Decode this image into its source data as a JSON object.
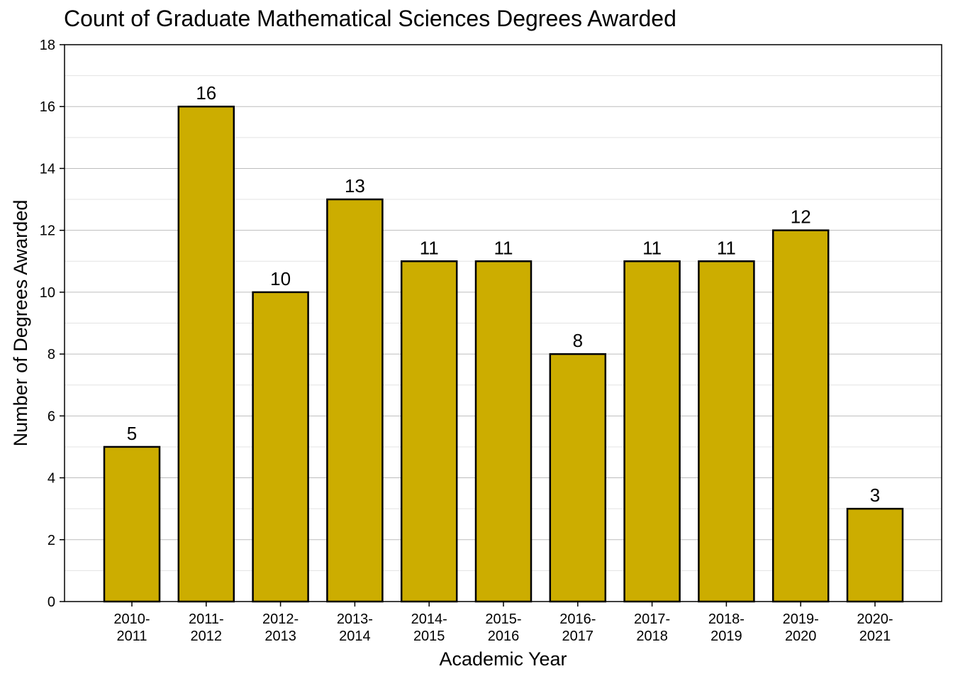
{
  "chart_data": {
    "type": "bar",
    "title": "Count of Graduate Mathematical Sciences Degrees Awarded",
    "xlabel": "Academic Year",
    "ylabel": "Number of Degrees Awarded",
    "categories": [
      [
        "2010-",
        "2011"
      ],
      [
        "2011-",
        "2012"
      ],
      [
        "2012-",
        "2013"
      ],
      [
        "2013-",
        "2014"
      ],
      [
        "2014-",
        "2015"
      ],
      [
        "2015-",
        "2016"
      ],
      [
        "2016-",
        "2017"
      ],
      [
        "2017-",
        "2018"
      ],
      [
        "2018-",
        "2019"
      ],
      [
        "2019-",
        "2020"
      ],
      [
        "2020-",
        "2021"
      ]
    ],
    "values": [
      5,
      16,
      10,
      13,
      11,
      11,
      8,
      11,
      11,
      12,
      3
    ],
    "ylim": [
      0,
      18
    ],
    "yticks": [
      0,
      2,
      4,
      6,
      8,
      10,
      12,
      14,
      16,
      18
    ],
    "grid": true,
    "data_labels": true,
    "colors": {
      "bar": "#CCAD00",
      "bar_edge": "#000000",
      "grid_major": "#bdbdbd",
      "grid_minor": "#e3e3e3"
    }
  }
}
